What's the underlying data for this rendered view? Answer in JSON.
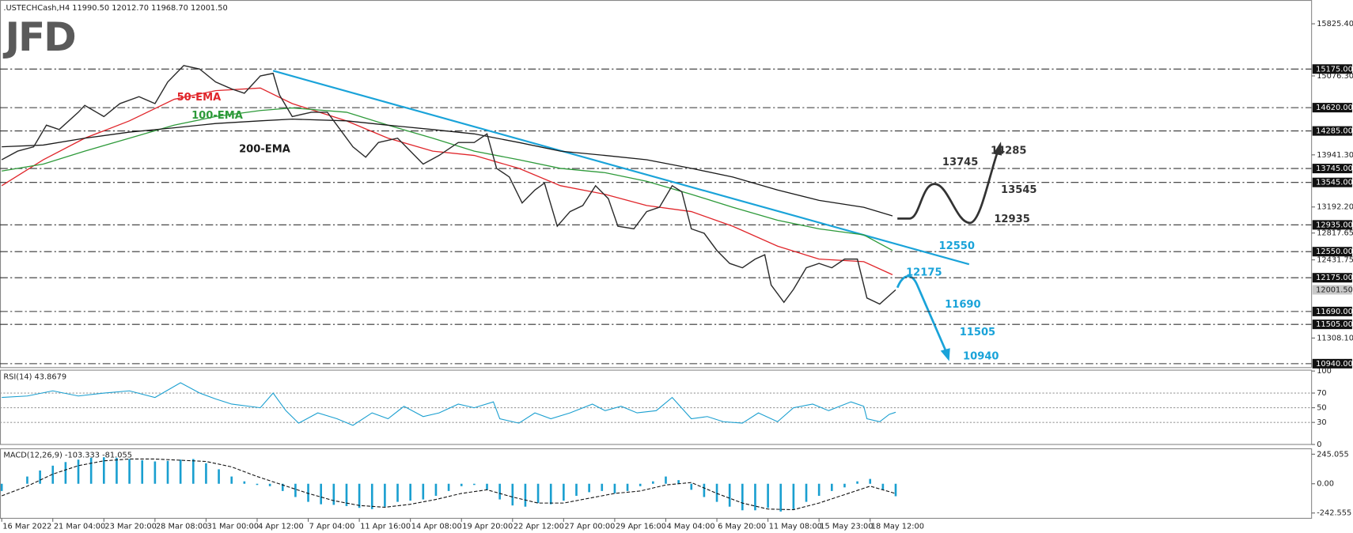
{
  "logo": "JFD",
  "chart_data": [
    {
      "type": "line",
      "title": ".USTECHCash,H4  11990.50 12012.70 11968.70 12001.50",
      "color": "#2b2b2b",
      "xlim": [
        0,
        410
      ],
      "xticks": [
        {
          "value": 0,
          "label": "16 Mar 2022"
        },
        {
          "value": 16,
          "label": "21 Mar 04:00"
        },
        {
          "value": 32,
          "label": "23 Mar 20:00"
        },
        {
          "value": 48,
          "label": "28 Mar 08:00"
        },
        {
          "value": 64,
          "label": "31 Mar 00:00"
        },
        {
          "value": 80,
          "label": "4 Apr 12:00"
        },
        {
          "value": 96,
          "label": "7 Apr 04:00"
        },
        {
          "value": 112,
          "label": "11 Apr 16:00"
        },
        {
          "value": 128,
          "label": "14 Apr 08:00"
        },
        {
          "value": 144,
          "label": "19 Apr 20:00"
        },
        {
          "value": 160,
          "label": "22 Apr 12:00"
        },
        {
          "value": 176,
          "label": "27 Apr 00:00"
        },
        {
          "value": 192,
          "label": "29 Apr 16:00"
        },
        {
          "value": 208,
          "label": "4 May 04:00"
        },
        {
          "value": 224,
          "label": "6 May 20:00"
        },
        {
          "value": 240,
          "label": "11 May 08:00"
        },
        {
          "value": 256,
          "label": "15 May 23:00"
        },
        {
          "value": 272,
          "label": "18 May 12:00"
        }
      ],
      "ylim": [
        10890,
        16130
      ],
      "yticks": [
        {
          "value": 15825.4,
          "label": "15825.40"
        },
        {
          "value": 15076.3,
          "label": "15076.30"
        },
        {
          "value": 13941.3,
          "label": "13941.30"
        },
        {
          "value": 13192.2,
          "label": "13192.20"
        },
        {
          "value": 12817.65,
          "label": "12817.65"
        },
        {
          "value": 12431.75,
          "label": "12431.75"
        },
        {
          "value": 11308.1,
          "label": "11308.10"
        }
      ],
      "levels": [
        {
          "value": 15175,
          "label": "15175.00"
        },
        {
          "value": 14620,
          "label": "14620.00"
        },
        {
          "value": 14285,
          "label": "14285.00"
        },
        {
          "value": 13745,
          "label": "13745.00"
        },
        {
          "value": 13545,
          "label": "13545.00"
        },
        {
          "value": 12935,
          "label": "12935.00"
        },
        {
          "value": 12550,
          "label": "12550.00"
        },
        {
          "value": 12175,
          "label": "12175.00"
        },
        {
          "value": 11690,
          "label": "11690.00"
        },
        {
          "value": 11505,
          "label": "11505.00"
        },
        {
          "value": 10940,
          "label": "10940.00"
        }
      ],
      "last": {
        "value": 12001.5,
        "label": "12001.50"
      },
      "x": [
        0,
        5,
        10,
        14,
        18,
        24,
        26,
        32,
        37,
        43,
        48,
        52,
        57,
        62,
        67,
        72,
        76,
        81,
        85,
        87,
        91,
        97,
        102,
        106,
        110,
        114,
        118,
        124,
        128,
        132,
        137,
        143,
        148,
        152,
        155,
        159,
        163,
        167,
        170,
        174,
        178,
        182,
        186,
        190,
        193,
        198,
        202,
        206,
        210,
        213,
        216,
        220,
        224,
        228,
        232,
        236,
        239,
        241,
        245,
        248,
        252,
        256,
        260,
        264,
        268,
        271,
        275,
        280
      ],
      "values": [
        13871,
        13995,
        14057,
        14368,
        14305,
        14554,
        14653,
        14492,
        14678,
        14778,
        14678,
        14989,
        15225,
        15175,
        14989,
        14889,
        14827,
        15076,
        15113,
        14802,
        14492,
        14554,
        14554,
        14305,
        14057,
        13908,
        14119,
        14181,
        13995,
        13809,
        13933,
        14119,
        14119,
        14243,
        13747,
        13623,
        13250,
        13436,
        13536,
        12915,
        13126,
        13213,
        13498,
        13312,
        12915,
        12878,
        13126,
        13188,
        13498,
        13411,
        12878,
        12815,
        12567,
        12381,
        12318,
        12443,
        12505,
        12070,
        11822,
        12008,
        12318,
        12381,
        12318,
        12443,
        12443,
        11884,
        11797,
        12001.5
      ],
      "series": [
        {
          "name": "50-EMA",
          "color": "#e0262b",
          "x": [
            0,
            13,
            26,
            40,
            54,
            67,
            81,
            91,
            108,
            121,
            135,
            148,
            162,
            175,
            189,
            202,
            216,
            229,
            243,
            256,
            270,
            279
          ],
          "values": [
            13498,
            13871,
            14181,
            14430,
            14740,
            14864,
            14902,
            14678,
            14430,
            14181,
            13995,
            13933,
            13747,
            13498,
            13374,
            13213,
            13126,
            12915,
            12629,
            12443,
            12406,
            12219
          ]
        },
        {
          "name": "100-EMA",
          "color": "#2e9a3a",
          "x": [
            0,
            13,
            26,
            40,
            54,
            67,
            81,
            91,
            108,
            121,
            135,
            148,
            162,
            175,
            189,
            202,
            216,
            229,
            243,
            256,
            270,
            279
          ],
          "values": [
            13709,
            13809,
            13995,
            14181,
            14368,
            14492,
            14579,
            14616,
            14554,
            14368,
            14181,
            13995,
            13871,
            13747,
            13685,
            13561,
            13374,
            13188,
            13002,
            12878,
            12791,
            12567
          ]
        },
        {
          "name": "200-EMA",
          "color": "#1a1a1a",
          "x": [
            0,
            13,
            26,
            40,
            54,
            67,
            81,
            91,
            108,
            121,
            135,
            148,
            162,
            175,
            189,
            202,
            216,
            229,
            243,
            256,
            270,
            279
          ],
          "values": [
            14057,
            14082,
            14181,
            14268,
            14330,
            14392,
            14430,
            14455,
            14430,
            14368,
            14305,
            14243,
            14119,
            13995,
            13933,
            13871,
            13747,
            13623,
            13436,
            13287,
            13188,
            13064
          ]
        }
      ],
      "trendline": {
        "color": "#1aa3d9",
        "x": [
          85,
          303
        ],
        "values": [
          15150,
          12368
        ]
      },
      "scenarios": [
        {
          "color": "#333333",
          "targets": [
            12935,
            13745,
            13545,
            14285
          ]
        },
        {
          "color": "#1aa3d9",
          "targets": [
            12550,
            12175,
            11690,
            11505,
            10940
          ]
        }
      ]
    },
    {
      "type": "line",
      "title": "RSI(14) 43.8679",
      "color": "#1a9fd0",
      "grid": true,
      "ylim": [
        0,
        100
      ],
      "yticks": [
        0,
        30,
        50,
        70,
        100
      ],
      "x": [
        0,
        8,
        16,
        24,
        32,
        40,
        48,
        56,
        62,
        67,
        72,
        81,
        85,
        89,
        93,
        99,
        105,
        110,
        116,
        121,
        126,
        132,
        137,
        143,
        148,
        154,
        156,
        162,
        167,
        172,
        178,
        185,
        189,
        194,
        199,
        205,
        210,
        216,
        221,
        226,
        232,
        237,
        243,
        248,
        254,
        259,
        266,
        270,
        271,
        275,
        278,
        280
      ],
      "values": [
        64,
        66,
        73,
        66,
        70,
        73,
        64,
        84,
        70,
        62,
        55,
        50,
        70,
        46,
        29,
        43,
        35,
        26,
        43,
        35,
        52,
        38,
        43,
        55,
        50,
        58,
        35,
        29,
        43,
        35,
        43,
        55,
        46,
        52,
        43,
        46,
        64,
        35,
        38,
        31,
        29,
        43,
        31,
        50,
        55,
        46,
        58,
        52,
        35,
        31,
        41,
        43.8679
      ]
    },
    {
      "type": "bar",
      "title": "MACD(12,26,9) -103.333 -81.055",
      "color": "#1a9fd0",
      "ylim": [
        -265,
        265
      ],
      "yticks": [
        -242.555,
        {
          "value": 0,
          "label": "0.00"
        },
        245.055
      ],
      "x": [
        0,
        4,
        8,
        12,
        16,
        20,
        24,
        28,
        32,
        36,
        40,
        44,
        48,
        52,
        56,
        60,
        64,
        68,
        72,
        76,
        80,
        84,
        88,
        92,
        96,
        100,
        104,
        108,
        112,
        116,
        120,
        124,
        128,
        132,
        136,
        140,
        144,
        148,
        152,
        156,
        160,
        164,
        168,
        172,
        176,
        180,
        184,
        188,
        192,
        196,
        200,
        204,
        208,
        212,
        216,
        220,
        224,
        228,
        232,
        236,
        240,
        244,
        248,
        252,
        256,
        260,
        264,
        268,
        272,
        276,
        280
      ],
      "values": [
        -60,
        0,
        60,
        110,
        150,
        180,
        200,
        215,
        220,
        215,
        205,
        195,
        185,
        190,
        200,
        205,
        170,
        120,
        60,
        20,
        -10,
        -20,
        -60,
        -110,
        -150,
        -170,
        -175,
        -185,
        -200,
        -210,
        -190,
        -150,
        -140,
        -130,
        -100,
        -60,
        -20,
        -10,
        -50,
        -130,
        -180,
        -190,
        -160,
        -170,
        -140,
        -100,
        -70,
        -60,
        -80,
        -60,
        -20,
        20,
        60,
        30,
        -50,
        -110,
        -150,
        -190,
        -220,
        -220,
        -200,
        -230,
        -210,
        -150,
        -100,
        -60,
        -30,
        20,
        40,
        -50,
        -103.333
      ],
      "signal": {
        "color": "#111111",
        "x": [
          0,
          8,
          16,
          24,
          32,
          40,
          48,
          56,
          64,
          72,
          80,
          88,
          96,
          104,
          112,
          120,
          128,
          136,
          144,
          152,
          160,
          168,
          176,
          184,
          192,
          200,
          208,
          216,
          224,
          232,
          240,
          248,
          256,
          264,
          272,
          280
        ],
        "values": [
          -100,
          -20,
          80,
          150,
          190,
          205,
          205,
          195,
          185,
          140,
          60,
          -10,
          -80,
          -140,
          -180,
          -195,
          -170,
          -130,
          -80,
          -50,
          -110,
          -160,
          -160,
          -120,
          -80,
          -60,
          -10,
          10,
          -80,
          -160,
          -210,
          -215,
          -160,
          -90,
          -20,
          -81.055
        ]
      }
    }
  ]
}
